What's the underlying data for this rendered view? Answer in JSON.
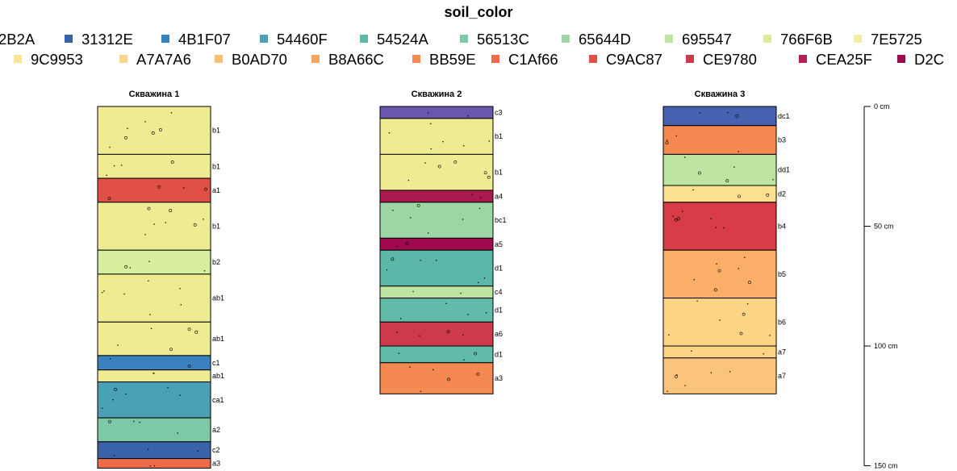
{
  "chart_data": {
    "type": "soil-profile",
    "title": "soil_color",
    "legend_title": "",
    "legend": {
      "row1": [
        {
          "label": "2B2A",
          "color": ""
        },
        {
          "label": "31312E",
          "color": "#3a62a8"
        },
        {
          "label": "4B1F07",
          "color": "#3a82bd"
        },
        {
          "label": "54460F",
          "color": "#4aa0b4"
        },
        {
          "label": "54524A",
          "color": "#5cb7a8"
        },
        {
          "label": "56513C",
          "color": "#7dc9a6"
        },
        {
          "label": "65644D",
          "color": "#9fd7a3"
        },
        {
          "label": "695547",
          "color": "#bde4a1"
        },
        {
          "label": "766F6B",
          "color": "#d8ee9c"
        },
        {
          "label": "7E5725",
          "color": "#eef0a0"
        }
      ],
      "row2": [
        {
          "label": "9C9953",
          "color": "#fbe596"
        },
        {
          "label": "A7A7A6",
          "color": "#fdd58a"
        },
        {
          "label": "B0AD70",
          "color": "#fdbf72"
        },
        {
          "label": "B8A66C",
          "color": "#f9a45f"
        },
        {
          "label": "BB59E",
          "color": "#f58952"
        },
        {
          "label": "C1Af66",
          "color": "#ee6d48"
        },
        {
          "label": "C9AC87",
          "color": "#e15046"
        },
        {
          "label": "CE9780",
          "color": "#cc3a4c"
        },
        {
          "label": "CEA25F",
          "color": "#b32251"
        },
        {
          "label": "D2C",
          "color": "#9e0a4d"
        }
      ]
    },
    "depth_axis": {
      "unit": "cm",
      "ticks": [
        "0 cm",
        "50 cm",
        "100 cm",
        "150 cm"
      ],
      "tick_values": [
        0,
        50,
        100,
        150
      ],
      "range": [
        0,
        150
      ]
    },
    "profiles": [
      {
        "name": "Скважина 1",
        "horizons": [
          {
            "name": "b1",
            "top": 0,
            "bottom": 20,
            "color": "#eeeb92"
          },
          {
            "name": "b1",
            "top": 20,
            "bottom": 30,
            "color": "#eeeb92"
          },
          {
            "name": "a1",
            "top": 30,
            "bottom": 40,
            "color": "#e15046"
          },
          {
            "name": "b1",
            "top": 40,
            "bottom": 60,
            "color": "#eeeb92"
          },
          {
            "name": "b2",
            "top": 60,
            "bottom": 70,
            "color": "#d8ee9c"
          },
          {
            "name": "ab1",
            "top": 70,
            "bottom": 90,
            "color": "#eeeb92"
          },
          {
            "name": "ab1",
            "top": 90,
            "bottom": 104,
            "color": "#eeeb92"
          },
          {
            "name": "c1",
            "top": 104,
            "bottom": 110,
            "color": "#3a82bd"
          },
          {
            "name": "ab1",
            "top": 110,
            "bottom": 115,
            "color": "#eeeb92"
          },
          {
            "name": "ca1",
            "top": 115,
            "bottom": 130,
            "color": "#4aa0b4"
          },
          {
            "name": "a2",
            "top": 130,
            "bottom": 140,
            "color": "#7dc9a6"
          },
          {
            "name": "c2",
            "top": 140,
            "bottom": 147,
            "color": "#3a62a8"
          },
          {
            "name": "a3",
            "top": 147,
            "bottom": 151,
            "color": "#ee6d48"
          }
        ]
      },
      {
        "name": "Скважина 2",
        "horizons": [
          {
            "name": "c3",
            "top": 0,
            "bottom": 5,
            "color": "#6a56ad"
          },
          {
            "name": "b1",
            "top": 5,
            "bottom": 20,
            "color": "#eeeb92"
          },
          {
            "name": "b1",
            "top": 20,
            "bottom": 35,
            "color": "#eeeb92"
          },
          {
            "name": "a4",
            "top": 35,
            "bottom": 40,
            "color": "#a91a4e"
          },
          {
            "name": "bc1",
            "top": 40,
            "bottom": 55,
            "color": "#9dd6a4"
          },
          {
            "name": "a5",
            "top": 55,
            "bottom": 60,
            "color": "#9e0a4d"
          },
          {
            "name": "d1",
            "top": 60,
            "bottom": 75,
            "color": "#5cb7a8"
          },
          {
            "name": "c4",
            "top": 75,
            "bottom": 80,
            "color": "#bde4a1"
          },
          {
            "name": "d1",
            "top": 80,
            "bottom": 90,
            "color": "#61bba8"
          },
          {
            "name": "a6",
            "top": 90,
            "bottom": 100,
            "color": "#cc3a4c"
          },
          {
            "name": "d1",
            "top": 100,
            "bottom": 107,
            "color": "#61bba8"
          },
          {
            "name": "a3",
            "top": 107,
            "bottom": 120,
            "color": "#f58952"
          }
        ]
      },
      {
        "name": "Скважина 3",
        "horizons": [
          {
            "name": "dc1",
            "top": 0,
            "bottom": 8,
            "color": "#4661b0"
          },
          {
            "name": "b3",
            "top": 8,
            "bottom": 20,
            "color": "#f58952"
          },
          {
            "name": "dd1",
            "top": 20,
            "bottom": 33,
            "color": "#bde4a1"
          },
          {
            "name": "d2",
            "top": 33,
            "bottom": 40,
            "color": "#fde08f"
          },
          {
            "name": "b4",
            "top": 40,
            "bottom": 60,
            "color": "#d83c46"
          },
          {
            "name": "b5",
            "top": 60,
            "bottom": 80,
            "color": "#fbae68"
          },
          {
            "name": "b6",
            "top": 80,
            "bottom": 100,
            "color": "#fdd584"
          },
          {
            "name": "a7",
            "top": 100,
            "bottom": 105,
            "color": "#fdd584"
          },
          {
            "name": "a7",
            "top": 105,
            "bottom": 120,
            "color": "#fbc47c"
          }
        ]
      }
    ]
  }
}
